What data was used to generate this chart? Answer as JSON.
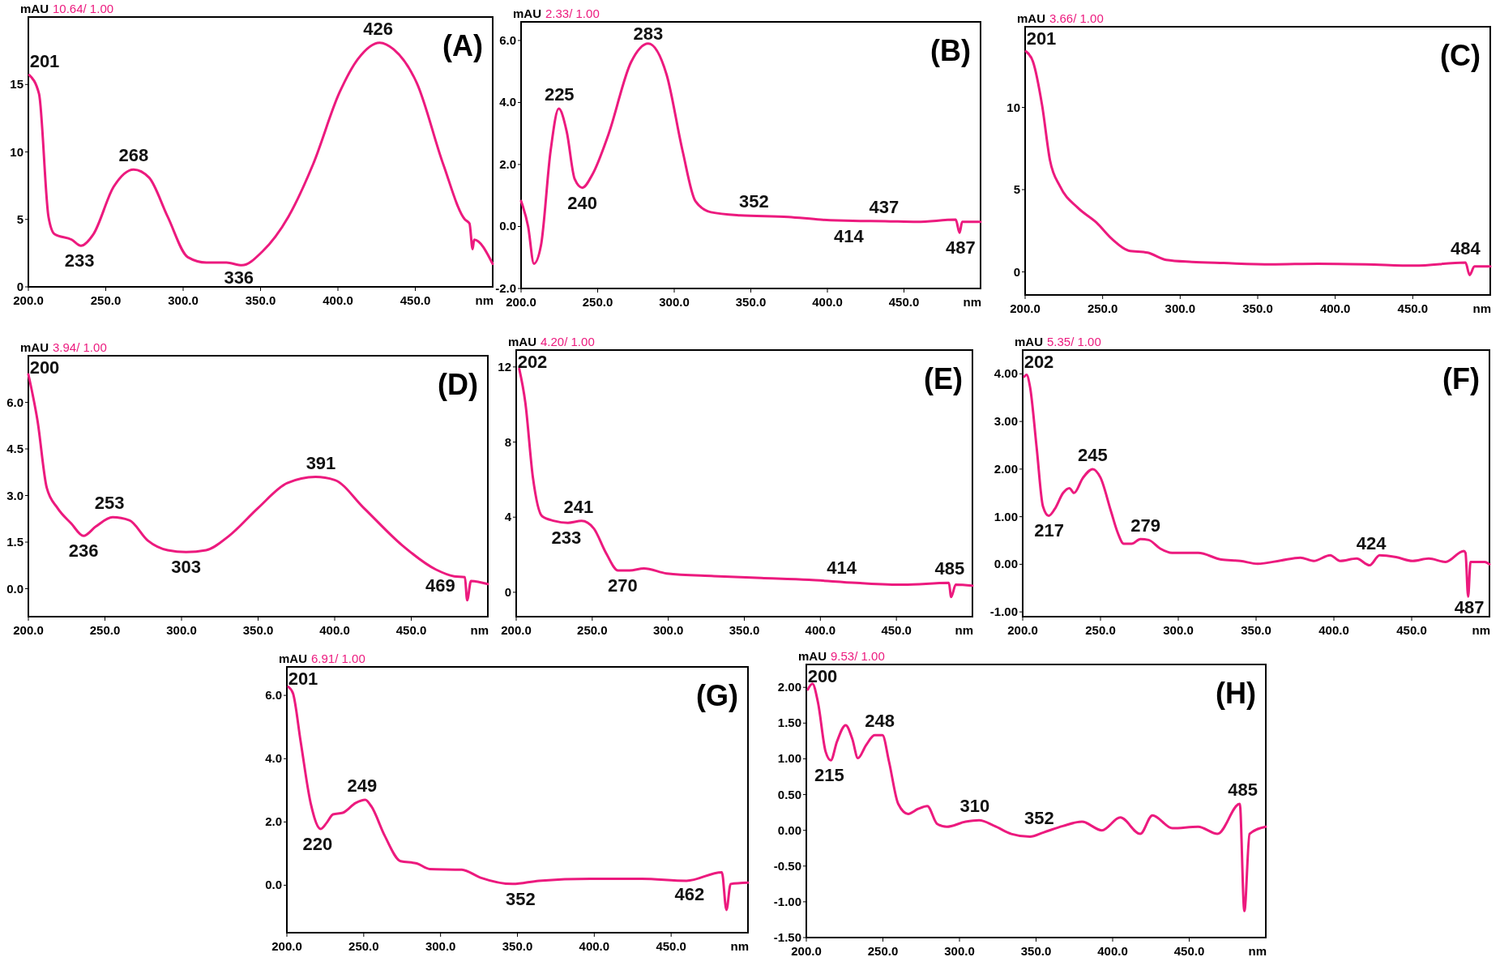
{
  "chart_data": [
    {
      "type": "line",
      "title": "(A)",
      "subtitle": "10.64/ 1.00",
      "xlabel": "nm",
      "ylabel": "mAU",
      "color": "#ec1a7e",
      "xlim": [
        200,
        500
      ],
      "ylim": [
        0,
        20
      ],
      "xticks": [
        {
          "value": 200,
          "label": "200.0"
        },
        {
          "value": 250,
          "label": "250.0"
        },
        {
          "value": 300,
          "label": "300.0"
        },
        {
          "value": 350,
          "label": "350.0"
        },
        {
          "value": 400,
          "label": "400.0"
        },
        {
          "value": 450,
          "label": "450.0"
        }
      ],
      "yticks": [
        0,
        5,
        10,
        15
      ],
      "x": [
        200.6,
        206.9,
        213,
        217,
        228,
        234,
        242,
        255,
        268,
        278,
        290,
        303,
        315,
        328,
        338,
        351,
        368,
        384,
        401,
        413,
        427,
        436,
        451,
        468,
        482,
        485,
        487,
        488,
        500
      ],
      "values": [
        15.7,
        14.3,
        5.2,
        3.9,
        3.5,
        3.05,
        3.9,
        7.4,
        8.7,
        8.1,
        5.2,
        2.2,
        1.8,
        1.8,
        1.6,
        2.6,
        5.2,
        9.1,
        14.4,
        16.9,
        18.1,
        17.6,
        15.1,
        9.1,
        5.0,
        4.7,
        2.8,
        3.5,
        1.7
      ],
      "annotations": [
        {
          "text": "201",
          "x": 201,
          "y": 15.7
        },
        {
          "text": "233",
          "x": 233,
          "y": 3.05
        },
        {
          "text": "268",
          "x": 268,
          "y": 8.7
        },
        {
          "text": "336",
          "x": 336,
          "y": 1.6
        },
        {
          "text": "426",
          "x": 426,
          "y": 18.1
        }
      ]
    },
    {
      "type": "line",
      "title": "(B)",
      "subtitle": "2.33/ 1.00",
      "xlabel": "nm",
      "ylabel": "mAU",
      "color": "#ec1a7e",
      "xlim": [
        200,
        500
      ],
      "ylim": [
        -2,
        6.6
      ],
      "xticks": [
        {
          "value": 200,
          "label": "200.0"
        },
        {
          "value": 250,
          "label": "250.0"
        },
        {
          "value": 300,
          "label": "300.0"
        },
        {
          "value": 350,
          "label": "350.0"
        },
        {
          "value": 400,
          "label": "400.0"
        },
        {
          "value": 450,
          "label": "450.0"
        }
      ],
      "yticks": [
        {
          "value": -2,
          "label": "-2.0"
        },
        {
          "value": 0,
          "label": "0.0"
        },
        {
          "value": 2,
          "label": "2.0"
        },
        {
          "value": 4,
          "label": "4.0"
        },
        {
          "value": 6,
          "label": "6.0"
        }
      ],
      "x": [
        200,
        204.6,
        208.4,
        213,
        219.3,
        224.6,
        229.8,
        235,
        240,
        246.6,
        257,
        271.8,
        283,
        295,
        305.4,
        313.8,
        324,
        343,
        374.6,
        395.6,
        416.6,
        437.6,
        458.6,
        483.8,
        486.3,
        488,
        500
      ],
      "values": [
        0.82,
        0,
        -1.2,
        -0.61,
        2.45,
        3.8,
        3.06,
        1.53,
        1.25,
        1.68,
        2.96,
        5.3,
        5.9,
        4.9,
        2.45,
        0.82,
        0.46,
        0.36,
        0.31,
        0.22,
        0.18,
        0.17,
        0.15,
        0.22,
        -0.2,
        0.15,
        0.15
      ],
      "annotations": [
        {
          "text": "225",
          "x": 225,
          "y": 3.8
        },
        {
          "text": "240",
          "x": 240,
          "y": 1.25
        },
        {
          "text": "283",
          "x": 283,
          "y": 5.9
        },
        {
          "text": "352",
          "x": 352,
          "y": 0.35
        },
        {
          "text": "414",
          "x": 414,
          "y": 0.18
        },
        {
          "text": "437",
          "x": 437,
          "y": 0.17
        },
        {
          "text": "487",
          "x": 487,
          "y": -0.2
        }
      ]
    },
    {
      "type": "line",
      "title": "(C)",
      "subtitle": "3.66/ 1.00",
      "xlabel": "nm",
      "ylabel": "mAU",
      "color": "#ec1a7e",
      "xlim": [
        200,
        500
      ],
      "ylim": [
        -1.4,
        14.9
      ],
      "xticks": [
        {
          "value": 200,
          "label": "200.0"
        },
        {
          "value": 250,
          "label": "250.0"
        },
        {
          "value": 300,
          "label": "300.0"
        },
        {
          "value": 350,
          "label": "350.0"
        },
        {
          "value": 400,
          "label": "400.0"
        },
        {
          "value": 450,
          "label": "450.0"
        }
      ],
      "yticks": [
        0,
        5,
        10
      ],
      "x": [
        200.6,
        205,
        211,
        216,
        222.5,
        234,
        246,
        256,
        266.6,
        279,
        291,
        307.5,
        328,
        358.7,
        389,
        420,
        451,
        484,
        486.7,
        489.8,
        500
      ],
      "values": [
        13.4,
        12.8,
        10.1,
        6.8,
        5.2,
        3.9,
        3.0,
        2.0,
        1.3,
        1.17,
        0.73,
        0.61,
        0.54,
        0.46,
        0.5,
        0.46,
        0.38,
        0.57,
        -0.19,
        0.34,
        0.34
      ],
      "annotations": [
        {
          "text": "201",
          "x": 201,
          "y": 13.4
        },
        {
          "text": "484",
          "x": 484,
          "y": 0.57
        }
      ]
    },
    {
      "type": "line",
      "title": "(D)",
      "subtitle": "3.94/ 1.00",
      "xlabel": "nm",
      "ylabel": "mAU",
      "color": "#ec1a7e",
      "xlim": [
        200,
        500
      ],
      "ylim": [
        -0.9,
        7.5
      ],
      "xticks": [
        {
          "value": 200,
          "label": "200.0"
        },
        {
          "value": 250,
          "label": "250.0"
        },
        {
          "value": 300,
          "label": "300.0"
        },
        {
          "value": 350,
          "label": "350.0"
        },
        {
          "value": 400,
          "label": "400.0"
        },
        {
          "value": 450,
          "label": "450.0"
        }
      ],
      "yticks": [
        {
          "value": 0,
          "label": "0.0"
        },
        {
          "value": 1.5,
          "label": "1.5"
        },
        {
          "value": 3,
          "label": "3.0"
        },
        {
          "value": 4.5,
          "label": "4.5"
        },
        {
          "value": 6,
          "label": "6.0"
        }
      ],
      "x": [
        200,
        206,
        212,
        219,
        228,
        236,
        244,
        255,
        266,
        278,
        291,
        303,
        316,
        331,
        350,
        369,
        387.5,
        400,
        419,
        444,
        466,
        478,
        485,
        486.5,
        489,
        500
      ],
      "values": [
        6.9,
        5.4,
        3.25,
        2.6,
        2.1,
        1.7,
        2.0,
        2.3,
        2.2,
        1.55,
        1.24,
        1.18,
        1.24,
        1.7,
        2.6,
        3.4,
        3.6,
        3.5,
        2.6,
        1.4,
        0.62,
        0.4,
        0.37,
        -0.37,
        0.25,
        0.15
      ],
      "annotations": [
        {
          "text": "200",
          "x": 200,
          "y": 6.9
        },
        {
          "text": "236",
          "x": 236,
          "y": 1.7
        },
        {
          "text": "253",
          "x": 253,
          "y": 2.3
        },
        {
          "text": "303",
          "x": 303,
          "y": 1.18
        },
        {
          "text": "391",
          "x": 391,
          "y": 3.6
        },
        {
          "text": "469",
          "x": 469,
          "y": 0.6
        }
      ]
    },
    {
      "type": "line",
      "title": "(E)",
      "subtitle": "4.20/ 1.00",
      "xlabel": "nm",
      "ylabel": "mAU",
      "color": "#ec1a7e",
      "xlim": [
        200,
        500
      ],
      "ylim": [
        -1.3,
        12.9
      ],
      "xticks": [
        {
          "value": 200,
          "label": "200.0"
        },
        {
          "value": 250,
          "label": "250.0"
        },
        {
          "value": 300,
          "label": "300.0"
        },
        {
          "value": 350,
          "label": "350.0"
        },
        {
          "value": 400,
          "label": "400.0"
        },
        {
          "value": 450,
          "label": "450.0"
        }
      ],
      "yticks": [
        0,
        4,
        8,
        12
      ],
      "x": [
        202,
        206,
        211,
        217,
        225,
        234,
        243,
        251,
        259,
        267,
        274.5,
        284,
        299,
        330,
        361,
        392.5,
        423.6,
        454.6,
        484.5,
        486,
        489,
        500
      ],
      "values": [
        11.9,
        10.1,
        6.1,
        4.05,
        3.8,
        3.7,
        3.8,
        3.4,
        2.1,
        1.16,
        1.16,
        1.27,
        1.0,
        0.86,
        0.76,
        0.66,
        0.5,
        0.4,
        0.5,
        -0.25,
        0.4,
        0.35
      ],
      "annotations": [
        {
          "text": "202",
          "x": 202,
          "y": 11.9
        },
        {
          "text": "233",
          "x": 233,
          "y": 3.7
        },
        {
          "text": "241",
          "x": 241,
          "y": 3.8
        },
        {
          "text": "270",
          "x": 270,
          "y": 1.16
        },
        {
          "text": "414",
          "x": 414,
          "y": 0.55
        },
        {
          "text": "485",
          "x": 485,
          "y": 0.5
        }
      ]
    },
    {
      "type": "line",
      "title": "(F)",
      "subtitle": "5.35/ 1.00",
      "xlabel": "nm",
      "ylabel": "mAU",
      "color": "#ec1a7e",
      "xlim": [
        200,
        500
      ],
      "ylim": [
        -1.1,
        4.5
      ],
      "xticks": [
        {
          "value": 200,
          "label": "200.0"
        },
        {
          "value": 250,
          "label": "250.0"
        },
        {
          "value": 300,
          "label": "300.0"
        },
        {
          "value": 350,
          "label": "350.0"
        },
        {
          "value": 400,
          "label": "400.0"
        },
        {
          "value": 450,
          "label": "450.0"
        }
      ],
      "yticks": [
        {
          "value": -1,
          "label": "-1.00"
        },
        {
          "value": 0,
          "label": "0.00"
        },
        {
          "value": 1,
          "label": "1.00"
        },
        {
          "value": 2,
          "label": "2.00"
        },
        {
          "value": 3,
          "label": "3.00"
        },
        {
          "value": 4,
          "label": "4.00"
        }
      ],
      "x": [
        201,
        202.5,
        204.7,
        209,
        213,
        216.7,
        220.6,
        226,
        230,
        233,
        238.6,
        245,
        250,
        256.6,
        261,
        265,
        270,
        275.7,
        281,
        288.4,
        296,
        312.8,
        327.6,
        340,
        351,
        365.8,
        378.5,
        387,
        397.6,
        404,
        414.6,
        423,
        429.4,
        440,
        450.6,
        461,
        471.8,
        483.5,
        484.6,
        486.3,
        487.8,
        497,
        500
      ],
      "values": [
        3.94,
        3.98,
        3.73,
        2.44,
        1.22,
        1.02,
        1.16,
        1.5,
        1.6,
        1.5,
        1.81,
        2.0,
        1.82,
        1.13,
        0.67,
        0.43,
        0.43,
        0.53,
        0.51,
        0.33,
        0.24,
        0.24,
        0.1,
        0.07,
        0.01,
        0.08,
        0.14,
        0.07,
        0.19,
        0.07,
        0.12,
        -0.02,
        0.19,
        0.15,
        0.07,
        0.12,
        0.05,
        0.28,
        0.24,
        -0.68,
        0.05,
        0.05,
        0
      ],
      "annotations": [
        {
          "text": "202",
          "x": 202,
          "y": 3.98
        },
        {
          "text": "217",
          "x": 217,
          "y": 1.02
        },
        {
          "text": "245",
          "x": 245,
          "y": 2.0
        },
        {
          "text": "279",
          "x": 279,
          "y": 0.51
        },
        {
          "text": "424",
          "x": 424,
          "y": 0.15
        },
        {
          "text": "487",
          "x": 487,
          "y": -0.68
        }
      ]
    },
    {
      "type": "line",
      "title": "(G)",
      "subtitle": "6.91/ 1.00",
      "xlabel": "nm",
      "ylabel": "mAU",
      "color": "#ec1a7e",
      "xlim": [
        200,
        500
      ],
      "ylim": [
        -1.5,
        6.9
      ],
      "xticks": [
        {
          "value": 200,
          "label": "200.0"
        },
        {
          "value": 250,
          "label": "250.0"
        },
        {
          "value": 300,
          "label": "300.0"
        },
        {
          "value": 350,
          "label": "350.0"
        },
        {
          "value": 400,
          "label": "400.0"
        },
        {
          "value": 450,
          "label": "450.0"
        }
      ],
      "yticks": [
        {
          "value": 0,
          "label": "0.0"
        },
        {
          "value": 2,
          "label": "2.0"
        },
        {
          "value": 4,
          "label": "4.0"
        },
        {
          "value": 6,
          "label": "6.0"
        }
      ],
      "x": [
        201,
        204,
        209,
        215.5,
        222,
        226,
        230,
        236.4,
        244.8,
        251,
        255,
        263.6,
        274,
        284.5,
        293,
        313.8,
        326,
        347,
        364,
        397.5,
        431,
        460,
        483,
        486,
        488.7,
        500
      ],
      "values": [
        6.27,
        6.06,
        4.53,
        2.59,
        1.78,
        1.98,
        2.24,
        2.29,
        2.6,
        2.7,
        2.49,
        1.57,
        0.76,
        0.69,
        0.51,
        0.49,
        0.24,
        0.04,
        0.14,
        0.2,
        0.2,
        0.14,
        0.41,
        -0.78,
        0.04,
        0.08
      ],
      "annotations": [
        {
          "text": "201",
          "x": 201,
          "y": 6.27
        },
        {
          "text": "220",
          "x": 220,
          "y": 1.78
        },
        {
          "text": "249",
          "x": 249,
          "y": 2.7
        },
        {
          "text": "352",
          "x": 352,
          "y": 0.04
        },
        {
          "text": "462",
          "x": 462,
          "y": 0.2
        }
      ]
    },
    {
      "type": "line",
      "title": "(H)",
      "subtitle": "9.53/ 1.00",
      "xlabel": "nm",
      "ylabel": "mAU",
      "color": "#ec1a7e",
      "xlim": [
        200,
        500
      ],
      "ylim": [
        -1.5,
        2.32
      ],
      "xticks": [
        {
          "value": 200,
          "label": "200.0"
        },
        {
          "value": 250,
          "label": "250.0"
        },
        {
          "value": 300,
          "label": "300.0"
        },
        {
          "value": 350,
          "label": "350.0"
        },
        {
          "value": 400,
          "label": "400.0"
        },
        {
          "value": 450,
          "label": "450.0"
        }
      ],
      "yticks": [
        {
          "value": -1.5,
          "label": "-1.50"
        },
        {
          "value": -1,
          "label": "-1.00"
        },
        {
          "value": -0.5,
          "label": "-0.50"
        },
        {
          "value": 0,
          "label": "0.00"
        },
        {
          "value": 0.5,
          "label": "0.50"
        },
        {
          "value": 1,
          "label": "1.00"
        },
        {
          "value": 1.5,
          "label": "1.50"
        },
        {
          "value": 2,
          "label": "2.00"
        }
      ],
      "x": [
        201,
        204,
        207.6,
        212.6,
        216,
        220,
        225.7,
        230,
        233.7,
        239,
        244.6,
        249.7,
        254,
        260,
        266.5,
        273,
        279,
        285.4,
        291.7,
        304,
        312.8,
        323,
        333.8,
        346,
        354.8,
        367.5,
        380,
        393,
        405,
        418,
        426,
        439,
        455.8,
        468.5,
        483,
        486,
        489.4,
        500
      ],
      "values": [
        1.97,
        2.05,
        1.79,
        1.1,
        0.98,
        1.24,
        1.47,
        1.28,
        1.01,
        1.19,
        1.33,
        1.33,
        0.96,
        0.37,
        0.23,
        0.3,
        0.34,
        0.09,
        0.05,
        0.12,
        0.14,
        0.06,
        -0.05,
        -0.09,
        -0.03,
        0.06,
        0.12,
        0,
        0.18,
        -0.05,
        0.21,
        0.03,
        0.05,
        -0.05,
        0.37,
        -1.13,
        -0.05,
        0.05
      ],
      "annotations": [
        {
          "text": "200",
          "x": 200,
          "y": 1.97
        },
        {
          "text": "215",
          "x": 215,
          "y": 0.98
        },
        {
          "text": "248",
          "x": 248,
          "y": 1.33
        },
        {
          "text": "310",
          "x": 310,
          "y": 0.14
        },
        {
          "text": "352",
          "x": 352,
          "y": -0.03
        },
        {
          "text": "485",
          "x": 485,
          "y": 0.37
        }
      ]
    }
  ]
}
